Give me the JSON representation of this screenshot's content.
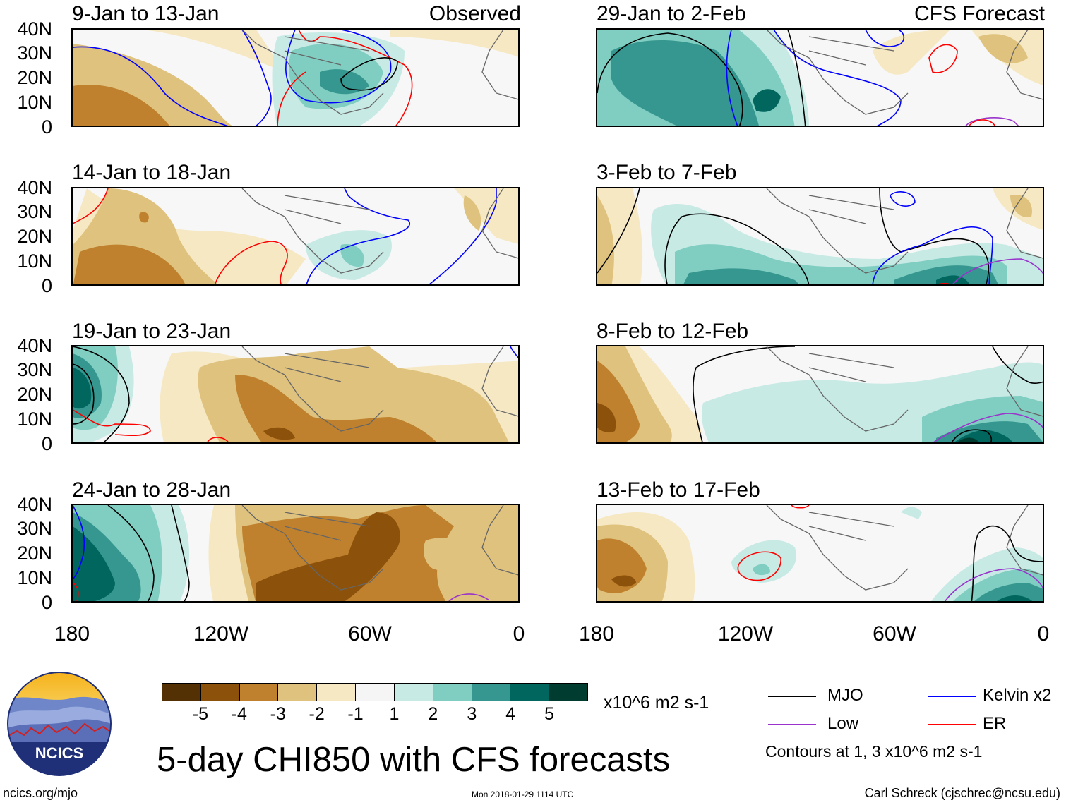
{
  "title": "5-day CHI850 with CFS forecasts",
  "logo_text": "NCICS",
  "url": "ncics.org/mjo",
  "timestamp": "Mon 2018-01-29 1114 UTC",
  "author": "Carl Schreck (cjschrec@ncsu.edu)",
  "observed_label": "Observed",
  "forecast_label": "CFS Forecast",
  "lat_labels": [
    "40N",
    "30N",
    "20N",
    "10N",
    "0"
  ],
  "lon_labels": [
    "180",
    "120W",
    "60W",
    "0"
  ],
  "panels_left": [
    {
      "title": "9-Jan to 13-Jan"
    },
    {
      "title": "14-Jan to 18-Jan"
    },
    {
      "title": "19-Jan to 23-Jan"
    },
    {
      "title": "24-Jan to 28-Jan"
    }
  ],
  "panels_right": [
    {
      "title": "29-Jan to 2-Feb"
    },
    {
      "title": "3-Feb to 7-Feb"
    },
    {
      "title": "8-Feb to 12-Feb"
    },
    {
      "title": "13-Feb to 17-Feb"
    }
  ],
  "colorbar": {
    "units": "x10^6 m2 s-1",
    "labels": [
      "-5",
      "-4",
      "-3",
      "-2",
      "-1",
      "1",
      "2",
      "3",
      "4",
      "5"
    ],
    "colors": [
      "#543005",
      "#8c510a",
      "#bf812d",
      "#dfc27d",
      "#f6e8c3",
      "#f5f5f5",
      "#c7eae5",
      "#80cdc1",
      "#35978f",
      "#01665e",
      "#003c30"
    ]
  },
  "legend": {
    "mjo": "MJO",
    "kelvin": "Kelvin x2",
    "low": "Low",
    "er": "ER",
    "contours_note": "Contours at 1, 3 x10^6 m2 s-1",
    "colors": {
      "mjo": "#000000",
      "kelvin": "#0000ff",
      "low": "#9933cc",
      "er": "#ff0000"
    }
  }
}
